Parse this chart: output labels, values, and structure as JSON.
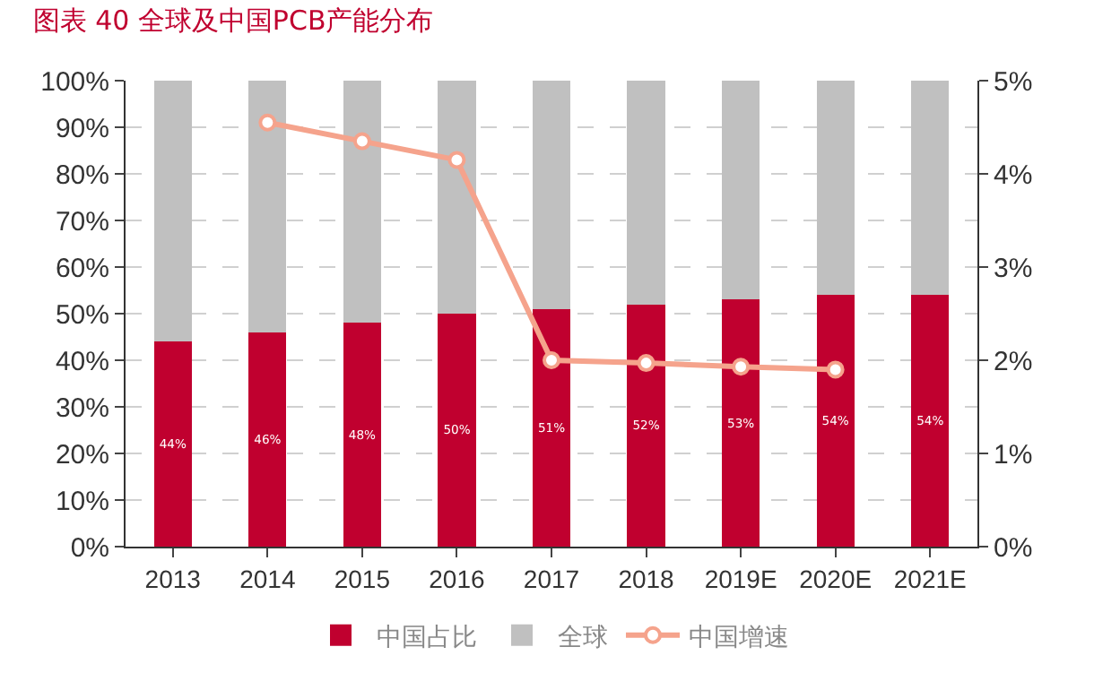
{
  "chart_data": {
    "type": "bar",
    "title": "图表 40 全球及中国PCB产能分布",
    "stacked": true,
    "categories": [
      "2013",
      "2014",
      "2015",
      "2016",
      "2017",
      "2018",
      "2019E",
      "2020E",
      "2021E"
    ],
    "series": [
      {
        "name": "中国占比",
        "color": "#c0002f",
        "values": [
          44,
          46,
          48,
          50,
          51,
          52,
          53,
          54,
          54
        ],
        "value_labels": [
          "44%",
          "46%",
          "48%",
          "50%",
          "51%",
          "52%",
          "53%",
          "54%",
          "54%"
        ]
      },
      {
        "name": "全球",
        "color": "#c0c0c0",
        "values": [
          56,
          54,
          52,
          50,
          49,
          48,
          47,
          46,
          46
        ]
      },
      {
        "name": "中国增速",
        "type": "line",
        "axis": "y2",
        "color": "#f5a38c",
        "marker": "circle",
        "values": [
          null,
          4.55,
          4.35,
          4.15,
          2.0,
          1.97,
          1.93,
          1.9,
          null
        ]
      }
    ],
    "ylim": [
      0,
      100
    ],
    "yticks": [
      {
        "value": 0,
        "label": "0%"
      },
      {
        "value": 10,
        "label": "10%"
      },
      {
        "value": 20,
        "label": "20%"
      },
      {
        "value": 30,
        "label": "30%"
      },
      {
        "value": 40,
        "label": "40%"
      },
      {
        "value": 50,
        "label": "50%"
      },
      {
        "value": 60,
        "label": "60%"
      },
      {
        "value": 70,
        "label": "70%"
      },
      {
        "value": 80,
        "label": "80%"
      },
      {
        "value": 90,
        "label": "90%"
      },
      {
        "value": 100,
        "label": "100%"
      }
    ],
    "y2lim": [
      0,
      5
    ],
    "y2ticks": [
      {
        "value": 0,
        "label": "0%"
      },
      {
        "value": 1,
        "label": "1%"
      },
      {
        "value": 2,
        "label": "2%"
      },
      {
        "value": 3,
        "label": "3%"
      },
      {
        "value": 4,
        "label": "4%"
      },
      {
        "value": 5,
        "label": "5%"
      }
    ],
    "grid": "y",
    "legend": "bottom"
  }
}
